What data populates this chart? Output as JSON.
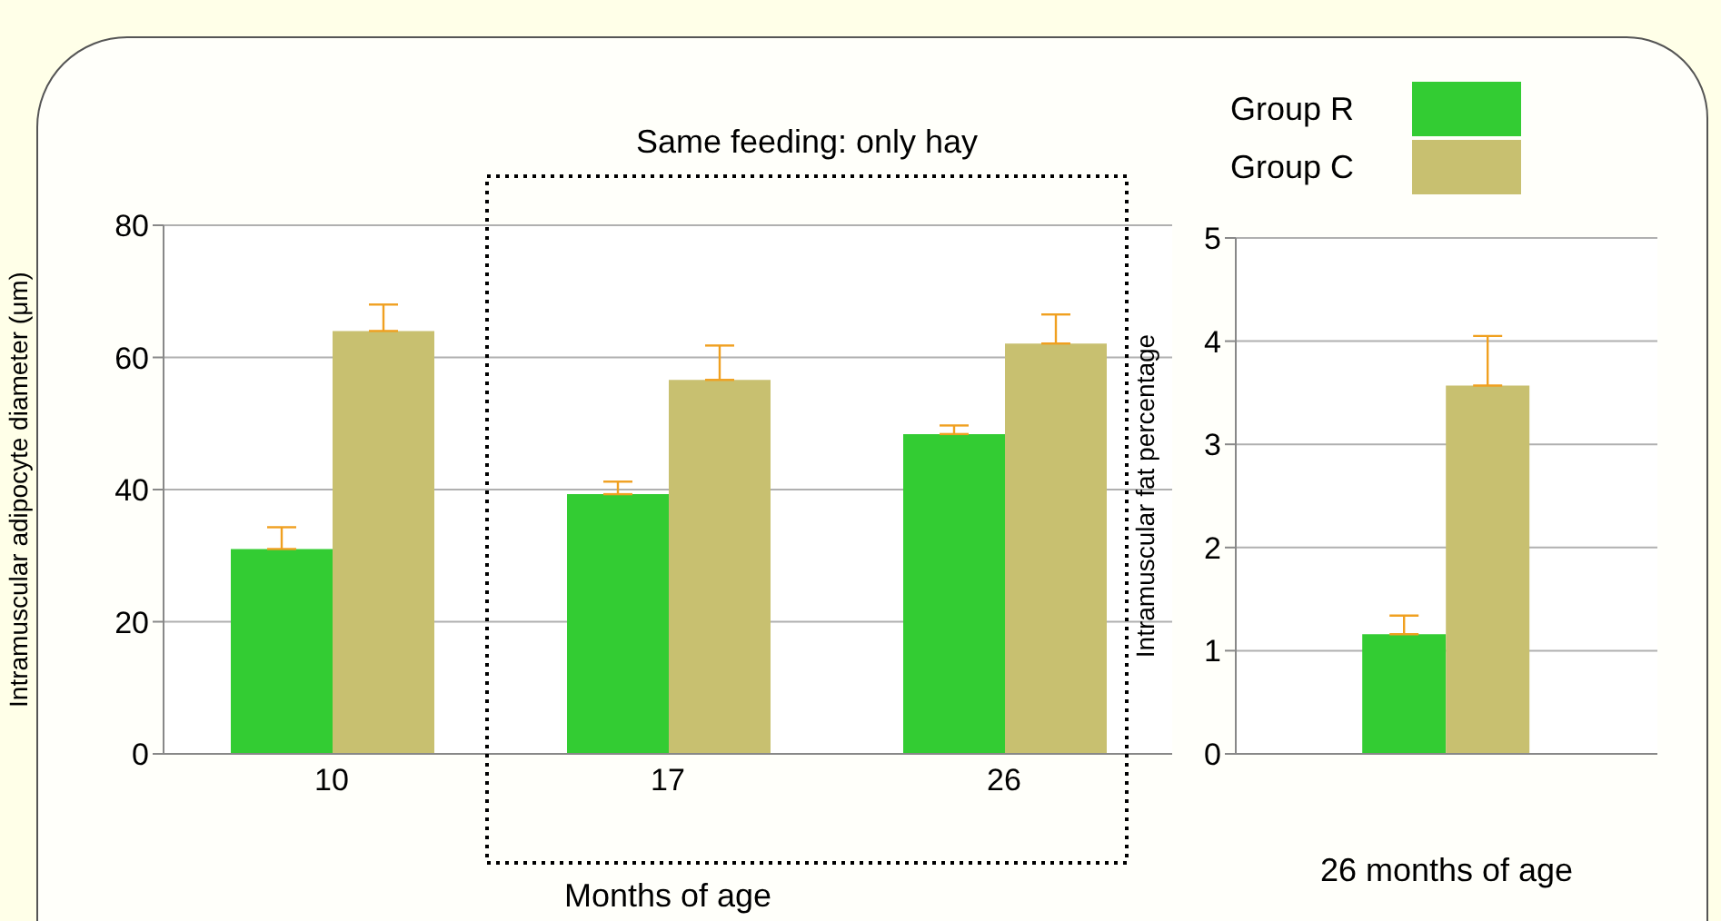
{
  "chart_data": [
    {
      "type": "bar",
      "xlabel": "Months of age",
      "ylabel": "Intramuscular adipocyte diameter (μm)",
      "categories": [
        "10",
        "17",
        "26"
      ],
      "ylim": [
        0,
        80
      ],
      "yticks": [
        0,
        20,
        40,
        60,
        80
      ],
      "grid": "y",
      "legend": "top right",
      "annotations": [
        "Same feeding: only hay"
      ],
      "series": [
        {
          "name": "Group R",
          "color": "#33cc33",
          "values": [
            31,
            39.3,
            48.4
          ],
          "errors": [
            [
              31,
              34.3
            ],
            [
              39.3,
              41.2
            ],
            [
              48.4,
              49.7
            ]
          ]
        },
        {
          "name": "Group C",
          "color": "#c8c070",
          "values": [
            64,
            56.6,
            62.1
          ],
          "errors": [
            [
              64,
              68
            ],
            [
              56.6,
              61.8
            ],
            [
              62.1,
              66.5
            ]
          ]
        }
      ]
    },
    {
      "type": "bar",
      "xlabel": "26 months of age",
      "ylabel": "Intramuscular fat percentage",
      "categories": [
        null
      ],
      "ylim": [
        0,
        5
      ],
      "yticks": [
        0,
        1,
        2,
        3,
        4,
        5
      ],
      "grid": "y",
      "series": [
        {
          "color": "#33cc33",
          "values": [
            1.16
          ],
          "errors": [
            [
              1.16,
              1.34
            ]
          ]
        },
        {
          "color": "#c8c070",
          "values": [
            3.57
          ],
          "errors": [
            [
              3.57,
              4.05
            ]
          ]
        }
      ]
    }
  ]
}
